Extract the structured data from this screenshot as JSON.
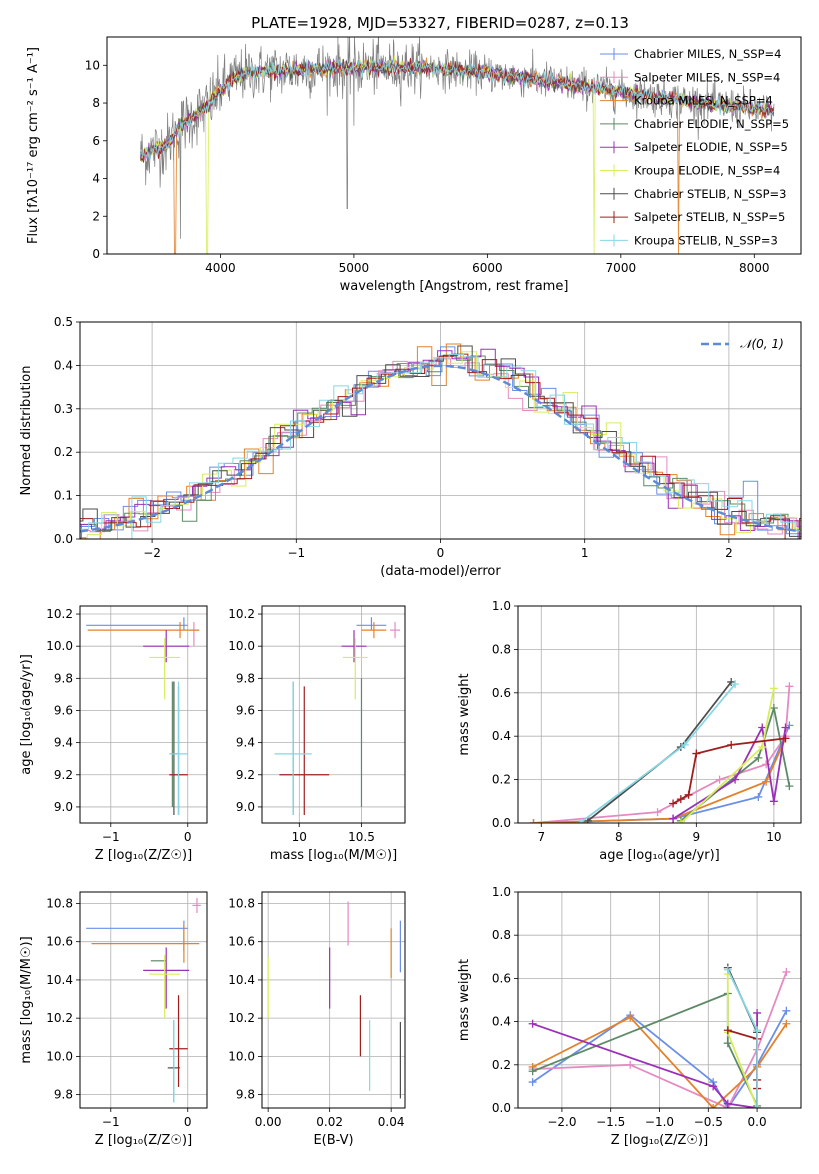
{
  "figure_title": "PLATE=1928, MJD=53327, FIBERID=0287, z=0.13",
  "colors": {
    "Chabrier MILES": "#6a8fe6",
    "Salpeter MILES": "#e58ac2",
    "Kroupa MILES": "#e3822b",
    "Chabrier ELODIE": "#5d8a66",
    "Salpeter ELODIE": "#9b30b8",
    "Kroupa ELODIE": "#d7ed5e",
    "Chabrier STELIB": "#4d4d4d",
    "Salpeter STELIB": "#a11e1e",
    "Kroupa STELIB": "#86d7e3",
    "data": "#7f7f7f",
    "gaussian": "#5b8ad6"
  },
  "chart_data": [
    {
      "type": "line",
      "panel": "spectrum",
      "xlabel": "wavelength [Angstrom, rest frame]",
      "ylabel": "Flux [fλ10⁻¹⁷ erg cm⁻² s⁻¹ A⁻¹]",
      "xlim": [
        3150,
        8350
      ],
      "ylim": [
        0,
        11.5
      ],
      "xticks": [
        4000,
        5000,
        6000,
        7000,
        8000
      ],
      "yticks": [
        0,
        2,
        4,
        6,
        8,
        10
      ],
      "legend_position": "right",
      "legend": [
        {
          "label": "Chabrier MILES, N_SSP=4",
          "color": "Chabrier MILES"
        },
        {
          "label": "Salpeter MILES, N_SSP=4",
          "color": "Salpeter MILES"
        },
        {
          "label": "Kroupa MILES, N_SSP=4",
          "color": "Kroupa MILES"
        },
        {
          "label": "Chabrier ELODIE, N_SSP=5",
          "color": "Chabrier ELODIE"
        },
        {
          "label": "Salpeter ELODIE, N_SSP=5",
          "color": "Salpeter ELODIE"
        },
        {
          "label": "Kroupa ELODIE, N_SSP=4",
          "color": "Kroupa ELODIE"
        },
        {
          "label": "Chabrier STELIB, N_SSP=3",
          "color": "Chabrier STELIB"
        },
        {
          "label": "Salpeter STELIB, N_SSP=5",
          "color": "Salpeter STELIB"
        },
        {
          "label": "Kroupa STELIB, N_SSP=3",
          "color": "Kroupa STELIB"
        }
      ],
      "continuum": {
        "x": [
          3400,
          3600,
          3700,
          3800,
          3900,
          4000,
          4100,
          4200,
          4400,
          4700,
          5000,
          5500,
          6000,
          6500,
          7000,
          7500,
          8000,
          8150
        ],
        "y": [
          5.2,
          5.8,
          6.8,
          7.3,
          7.8,
          8.7,
          9.3,
          9.6,
          9.7,
          9.8,
          9.9,
          9.9,
          9.6,
          9.1,
          8.6,
          8.1,
          7.7,
          7.5
        ]
      },
      "model_range": [
        3400,
        8150
      ],
      "model_drops": [
        {
          "x": 3660,
          "models": [
            "Kroupa MILES"
          ]
        },
        {
          "x": 3900,
          "models": [
            "Kroupa ELODIE"
          ]
        },
        {
          "x": 6800,
          "models": [
            "Kroupa ELODIE"
          ]
        },
        {
          "x": 7430,
          "models": [
            "Kroupa MILES"
          ]
        }
      ],
      "data_dips": [
        {
          "x": 3700,
          "y": 0.8
        },
        {
          "x": 4950,
          "y": 2.4
        },
        {
          "x": 5000,
          "y": 6.8
        }
      ]
    },
    {
      "type": "histogram",
      "panel": "residuals",
      "xlabel": "(data-model)/error",
      "ylabel": "Normed distribution",
      "xlim": [
        -2.5,
        2.5
      ],
      "ylim": [
        0,
        0.5
      ],
      "xticks": [
        -2,
        -1,
        0,
        1,
        2
      ],
      "yticks": [
        0.0,
        0.1,
        0.2,
        0.3,
        0.4,
        0.5
      ],
      "grid": true,
      "legend": [
        {
          "label": "𝒩(0, 1)",
          "color": "gaussian",
          "style": "dashed"
        }
      ],
      "legend_position": "top-right",
      "bin_width": 0.1,
      "gaussian": {
        "mean": 0,
        "sigma": 1
      }
    },
    {
      "type": "errorbar",
      "panel": "age_vs_Z",
      "xlabel": "Z [log₁₀(Z/Z☉)]",
      "ylabel": "age  [log₁₀(age/yr)]",
      "xlim": [
        -1.4,
        0.25
      ],
      "ylim": [
        8.9,
        10.25
      ],
      "xticks": [
        -1,
        0
      ],
      "yticks": [
        9.0,
        9.2,
        9.4,
        9.6,
        9.8,
        10.0,
        10.2
      ],
      "grid": true,
      "points": [
        {
          "model": "Chabrier MILES",
          "x": -0.05,
          "y": 10.13,
          "xerr": [
            1.27,
            0.05
          ],
          "yerr": [
            0.03,
            0.05
          ]
        },
        {
          "model": "Salpeter MILES",
          "x": 0.08,
          "y": 10.1,
          "xerr": [
            0.05,
            0.05
          ],
          "yerr": [
            0.1,
            0.05
          ]
        },
        {
          "model": "Kroupa MILES",
          "x": -0.1,
          "y": 10.1,
          "xerr": [
            1.2,
            0.25
          ],
          "yerr": [
            0.05,
            0.05
          ]
        },
        {
          "model": "Chabrier ELODIE",
          "x": -0.2,
          "y": 9.3,
          "xerr": [
            0.0,
            0.0
          ],
          "yerr": [
            0.3,
            0.48
          ]
        },
        {
          "model": "Salpeter ELODIE",
          "x": -0.28,
          "y": 10.0,
          "xerr": [
            0.3,
            0.3
          ],
          "yerr": [
            0.1,
            0.1
          ]
        },
        {
          "model": "Kroupa ELODIE",
          "x": -0.3,
          "y": 9.93,
          "xerr": [
            0.2,
            0.2
          ],
          "yerr": [
            0.26,
            0.12
          ]
        },
        {
          "model": "Chabrier STELIB",
          "x": -0.18,
          "y": 9.33,
          "xerr": [
            0.05,
            0.05
          ],
          "yerr": [
            0.38,
            0.45
          ]
        },
        {
          "model": "Salpeter STELIB",
          "x": -0.12,
          "y": 9.2,
          "xerr": [
            0.12,
            0.12
          ],
          "yerr": [
            0.25,
            0.55
          ]
        },
        {
          "model": "Kroupa STELIB",
          "x": -0.12,
          "y": 9.33,
          "xerr": [
            0.12,
            0.12
          ],
          "yerr": [
            0.38,
            0.45
          ]
        }
      ]
    },
    {
      "type": "errorbar",
      "panel": "age_vs_mass",
      "xlabel": "mass [log₁₀(M/M☉)]",
      "ylabel": "",
      "xlim": [
        9.7,
        10.85
      ],
      "ylim": [
        8.9,
        10.25
      ],
      "xticks": [
        10.0,
        10.5
      ],
      "yticks": [
        9.0,
        9.2,
        9.4,
        9.6,
        9.8,
        10.0,
        10.2
      ],
      "grid": true,
      "points": [
        {
          "model": "Chabrier MILES",
          "x": 10.58,
          "y": 10.13,
          "xerr": [
            0.12,
            0.12
          ],
          "yerr": [
            0.03,
            0.05
          ]
        },
        {
          "model": "Salpeter MILES",
          "x": 10.77,
          "y": 10.1,
          "xerr": [
            0.04,
            0.04
          ],
          "yerr": [
            0.05,
            0.05
          ]
        },
        {
          "model": "Kroupa MILES",
          "x": 10.6,
          "y": 10.1,
          "xerr": [
            0.1,
            0.1
          ],
          "yerr": [
            0.05,
            0.05
          ]
        },
        {
          "model": "Chabrier ELODIE",
          "x": 10.5,
          "y": 9.5,
          "xerr": [
            0.0,
            0.0
          ],
          "yerr": [
            0.5,
            0.3
          ]
        },
        {
          "model": "Salpeter ELODIE",
          "x": 10.44,
          "y": 10.0,
          "xerr": [
            0.1,
            0.1
          ],
          "yerr": [
            0.1,
            0.1
          ]
        },
        {
          "model": "Kroupa ELODIE",
          "x": 10.45,
          "y": 9.93,
          "xerr": [
            0.1,
            0.1
          ],
          "yerr": [
            0.26,
            0.12
          ]
        },
        {
          "model": "Chabrier STELIB",
          "x": 9.95,
          "y": 9.33,
          "xerr": [
            0.0,
            0.0
          ],
          "yerr": [
            0.38,
            0.45
          ]
        },
        {
          "model": "Salpeter STELIB",
          "x": 10.04,
          "y": 9.2,
          "xerr": [
            0.2,
            0.2
          ],
          "yerr": [
            0.25,
            0.55
          ]
        },
        {
          "model": "Kroupa STELIB",
          "x": 9.95,
          "y": 9.33,
          "xerr": [
            0.15,
            0.15
          ],
          "yerr": [
            0.38,
            0.45
          ]
        }
      ]
    },
    {
      "type": "line",
      "panel": "weight_vs_age",
      "xlabel": "age  [log₁₀(age/yr)]",
      "ylabel": "mass weight",
      "xlim": [
        6.7,
        10.35
      ],
      "ylim": [
        0,
        1
      ],
      "xticks": [
        7,
        8,
        9,
        10
      ],
      "yticks": [
        0.0,
        0.2,
        0.4,
        0.6,
        0.8,
        1.0
      ],
      "grid": true,
      "series": [
        {
          "model": "Chabrier MILES",
          "x": [
            6.9,
            8.7,
            9.8,
            10.2
          ],
          "y": [
            0.0,
            0.02,
            0.12,
            0.45
          ]
        },
        {
          "model": "Salpeter MILES",
          "x": [
            6.9,
            8.5,
            9.3,
            9.9,
            10.15,
            10.2
          ],
          "y": [
            0.0,
            0.05,
            0.2,
            0.27,
            0.4,
            0.63
          ]
        },
        {
          "model": "Kroupa MILES",
          "x": [
            6.9,
            8.7,
            9.9,
            10.15
          ],
          "y": [
            0.0,
            0.02,
            0.19,
            0.39
          ]
        },
        {
          "model": "Chabrier ELODIE",
          "x": [
            8.8,
            9.8,
            10.0,
            10.2
          ],
          "y": [
            0.01,
            0.3,
            0.53,
            0.17
          ]
        },
        {
          "model": "Salpeter ELODIE",
          "x": [
            8.7,
            9.5,
            9.85,
            10.0,
            10.15
          ],
          "y": [
            0.02,
            0.2,
            0.44,
            0.1,
            0.44
          ]
        },
        {
          "model": "Kroupa ELODIE",
          "x": [
            8.8,
            9.85,
            10.0
          ],
          "y": [
            0.0,
            0.35,
            0.62
          ]
        },
        {
          "model": "Chabrier STELIB",
          "x": [
            7.6,
            8.8,
            9.45
          ],
          "y": [
            0.01,
            0.35,
            0.65
          ]
        },
        {
          "model": "Salpeter STELIB",
          "x": [
            8.7,
            8.8,
            8.9,
            9.0,
            9.45,
            10.15
          ],
          "y": [
            0.09,
            0.11,
            0.13,
            0.32,
            0.36,
            0.39
          ]
        },
        {
          "model": "Kroupa STELIB",
          "x": [
            7.5,
            8.85,
            9.5
          ],
          "y": [
            0.0,
            0.36,
            0.64
          ]
        }
      ]
    },
    {
      "type": "errorbar",
      "panel": "mass_vs_Z",
      "xlabel": "Z [log₁₀(Z/Z☉)]",
      "ylabel": "mass [log₁₀(M/M☉)]",
      "xlim": [
        -1.4,
        0.25
      ],
      "ylim": [
        9.73,
        10.86
      ],
      "xticks": [
        -1,
        0
      ],
      "yticks": [
        9.8,
        10.0,
        10.2,
        10.4,
        10.6,
        10.8
      ],
      "grid": true,
      "points": [
        {
          "model": "Chabrier MILES",
          "x": -0.05,
          "y": 10.67,
          "xerr": [
            1.27,
            0.05
          ],
          "yerr": [
            0.12,
            0.04
          ]
        },
        {
          "model": "Salpeter MILES",
          "x": 0.12,
          "y": 10.79,
          "xerr": [
            0.06,
            0.05
          ],
          "yerr": [
            0.04,
            0.04
          ]
        },
        {
          "model": "Kroupa MILES",
          "x": -0.05,
          "y": 10.59,
          "xerr": [
            1.2,
            0.2
          ],
          "yerr": [
            0.1,
            0.1
          ]
        },
        {
          "model": "Chabrier ELODIE",
          "x": -0.28,
          "y": 10.5,
          "xerr": [
            0.2,
            0.0
          ],
          "yerr": [
            0.0,
            0.0
          ]
        },
        {
          "model": "Salpeter ELODIE",
          "x": -0.28,
          "y": 10.45,
          "xerr": [
            0.3,
            0.3
          ],
          "yerr": [
            0.2,
            0.12
          ]
        },
        {
          "model": "Kroupa ELODIE",
          "x": -0.3,
          "y": 10.43,
          "xerr": [
            0.2,
            0.2
          ],
          "yerr": [
            0.23,
            0.1
          ]
        },
        {
          "model": "Chabrier STELIB",
          "x": -0.18,
          "y": 9.94,
          "xerr": [
            0.08,
            0.08
          ],
          "yerr": [
            0.18,
            0.25
          ]
        },
        {
          "model": "Salpeter STELIB",
          "x": -0.12,
          "y": 10.04,
          "xerr": [
            0.12,
            0.12
          ],
          "yerr": [
            0.2,
            0.28
          ]
        },
        {
          "model": "Kroupa STELIB",
          "x": -0.18,
          "y": 9.94,
          "xerr": [
            0.0,
            0.0
          ],
          "yerr": [
            0.18,
            0.25
          ]
        }
      ]
    },
    {
      "type": "errorbar",
      "panel": "mass_vs_EBV",
      "xlabel": "E(B-V)",
      "ylabel": "",
      "xlim": [
        -0.002,
        0.0445
      ],
      "ylim": [
        9.73,
        10.86
      ],
      "xticks": [
        0.0,
        0.02,
        0.04
      ],
      "xticklabels": [
        "0.00",
        "0.02",
        "0.04"
      ],
      "yticks": [
        9.8,
        10.0,
        10.2,
        10.4,
        10.6,
        10.8
      ],
      "grid": true,
      "points": [
        {
          "model": "Kroupa ELODIE",
          "x": 0.0,
          "y": 10.36,
          "xerr": [
            0,
            0
          ],
          "yerr": [
            0.16,
            0.16
          ]
        },
        {
          "model": "Salpeter ELODIE",
          "x": 0.02,
          "y": 10.45,
          "xerr": [
            0,
            0
          ],
          "yerr": [
            0.2,
            0.12
          ]
        },
        {
          "model": "Salpeter MILES",
          "x": 0.026,
          "y": 10.69,
          "xerr": [
            0,
            0
          ],
          "yerr": [
            0.11,
            0.12
          ]
        },
        {
          "model": "Salpeter STELIB",
          "x": 0.03,
          "y": 10.13,
          "xerr": [
            0,
            0
          ],
          "yerr": [
            0.13,
            0.19
          ]
        },
        {
          "model": "Kroupa STELIB",
          "x": 0.033,
          "y": 10.0,
          "xerr": [
            0,
            0
          ],
          "yerr": [
            0.18,
            0.19
          ]
        },
        {
          "model": "Kroupa MILES",
          "x": 0.04,
          "y": 10.53,
          "xerr": [
            0,
            0
          ],
          "yerr": [
            0.12,
            0.14
          ]
        },
        {
          "model": "Chabrier MILES",
          "x": 0.043,
          "y": 10.57,
          "xerr": [
            0,
            0
          ],
          "yerr": [
            0.13,
            0.14
          ]
        },
        {
          "model": "Chabrier STELIB",
          "x": 0.043,
          "y": 9.98,
          "xerr": [
            0,
            0
          ],
          "yerr": [
            0.2,
            0.2
          ]
        }
      ]
    },
    {
      "type": "line",
      "panel": "weight_vs_Z",
      "xlabel": "Z [log₁₀(Z/Z☉)]",
      "ylabel": "mass weight",
      "xlim": [
        -2.45,
        0.45
      ],
      "ylim": [
        0,
        1
      ],
      "xticks": [
        -2.0,
        -1.5,
        -1.0,
        -0.5,
        0.0
      ],
      "xticklabels": [
        "−2.0",
        "−1.5",
        "−1.0",
        "−0.5",
        "0.0"
      ],
      "yticks": [
        0.0,
        0.2,
        0.4,
        0.6,
        0.8,
        1.0
      ],
      "grid": true,
      "series": [
        {
          "model": "Chabrier MILES",
          "x": [
            -2.3,
            -1.3,
            -0.45,
            -0.3,
            0.0,
            0.3
          ],
          "y": [
            0.12,
            0.43,
            0.12,
            0.0,
            0.2,
            0.45
          ]
        },
        {
          "model": "Salpeter MILES",
          "x": [
            -2.3,
            -1.3,
            -0.3,
            0.0,
            0.3
          ],
          "y": [
            0.18,
            0.2,
            0.0,
            0.27,
            0.63
          ]
        },
        {
          "model": "Kroupa MILES",
          "x": [
            -2.3,
            -1.3,
            -0.45,
            0.0,
            0.3
          ],
          "y": [
            0.19,
            0.42,
            0.0,
            0.19,
            0.39
          ]
        },
        {
          "model": "Chabrier ELODIE",
          "x": [
            -2.3,
            -0.3,
            -0.3,
            0.0
          ],
          "y": [
            0.17,
            0.53,
            0.3,
            0.01
          ]
        },
        {
          "model": "Salpeter ELODIE",
          "x": [
            -2.3,
            -0.45,
            -0.3,
            0.0,
            0.0
          ],
          "y": [
            0.39,
            0.1,
            0.02,
            0.0,
            0.44
          ]
        },
        {
          "model": "Kroupa ELODIE",
          "x": [
            -0.3,
            -0.3,
            0.0
          ],
          "y": [
            0.62,
            0.35,
            0.0
          ]
        },
        {
          "model": "Chabrier STELIB",
          "x": [
            -0.3,
            0.0,
            0.0
          ],
          "y": [
            0.65,
            0.35,
            0.0
          ]
        },
        {
          "model": "Salpeter STELIB",
          "x": [
            -0.3,
            0.0,
            0.0,
            0.0
          ],
          "y": [
            0.36,
            0.32,
            0.13,
            0.09
          ]
        },
        {
          "model": "Kroupa STELIB",
          "x": [
            -0.3,
            0.0,
            0.0
          ],
          "y": [
            0.64,
            0.36,
            0.0
          ]
        }
      ]
    }
  ]
}
